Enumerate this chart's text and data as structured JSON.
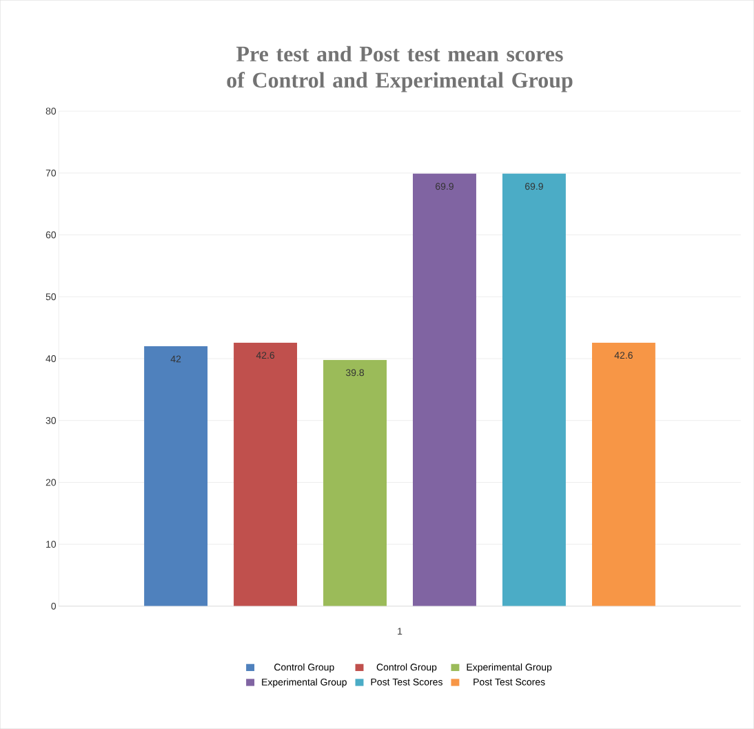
{
  "chart_data": {
    "type": "bar",
    "title": "Pre test and Post test mean scores of Control and Experimental Group",
    "categories": [
      "1"
    ],
    "series": [
      {
        "name": "Control Group",
        "color": "#4f81bd",
        "values": [
          42
        ],
        "value_labels": [
          "42"
        ]
      },
      {
        "name": "Control Group",
        "color": "#c0504d",
        "values": [
          42.6
        ],
        "value_labels": [
          "42.6"
        ]
      },
      {
        "name": "Experimental Group",
        "color": "#9bbb59",
        "values": [
          39.8
        ],
        "value_labels": [
          "39.8"
        ]
      },
      {
        "name": "Experimental Group",
        "color": "#8064a2",
        "values": [
          69.9
        ],
        "value_labels": [
          "69.9"
        ]
      },
      {
        "name": "Post Test Scores",
        "color": "#4bacc6",
        "values": [
          69.9
        ],
        "value_labels": [
          "69.9"
        ]
      },
      {
        "name": "Post Test Scores",
        "color": "#f79646",
        "values": [
          42.6
        ],
        "value_labels": [
          "42.6"
        ]
      }
    ],
    "ylim": [
      0,
      80
    ],
    "yticks": [
      0,
      10,
      20,
      30,
      40,
      50,
      60,
      70,
      80
    ],
    "grid": "y",
    "legend": "bottom"
  }
}
